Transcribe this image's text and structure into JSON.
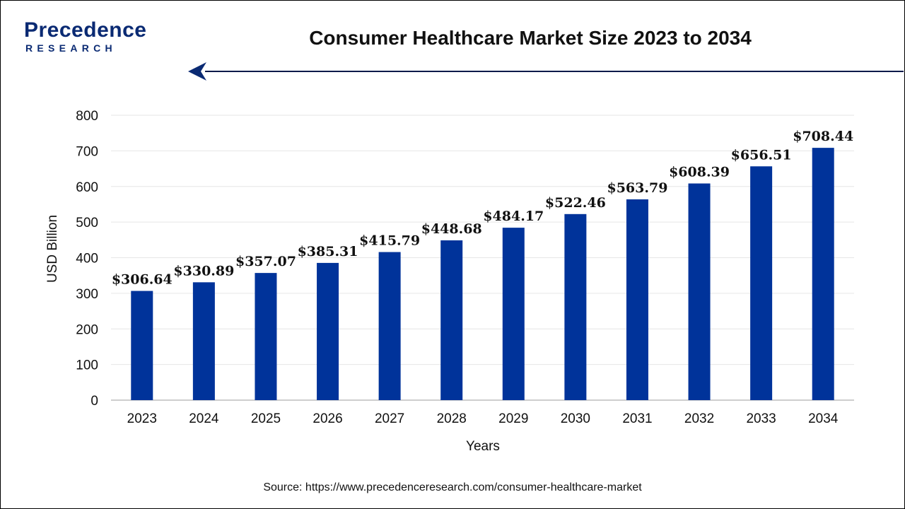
{
  "brand": {
    "name": "Precedence",
    "subtitle": "RESEARCH",
    "color": "#0a2a73"
  },
  "header": {
    "title": "Consumer Healthcare Market Size 2023 to 2034"
  },
  "footer": {
    "source": "Source: https://www.precedenceresearch.com/consumer-healthcare-market"
  },
  "chart_data": {
    "type": "bar",
    "title": "Consumer Healthcare Market Size 2023 to 2034",
    "xlabel": "Years",
    "ylabel": "USD Billion",
    "ylim": [
      0,
      800
    ],
    "yticks": [
      0,
      100,
      200,
      300,
      400,
      500,
      600,
      700,
      800
    ],
    "grid": true,
    "legend": "none",
    "bar_color": "#00339a",
    "categories": [
      "2023",
      "2024",
      "2025",
      "2026",
      "2027",
      "2028",
      "2029",
      "2030",
      "2031",
      "2032",
      "2033",
      "2034"
    ],
    "values": [
      306.64,
      330.89,
      357.07,
      385.31,
      415.79,
      448.68,
      484.17,
      522.46,
      563.79,
      608.39,
      656.51,
      708.44
    ],
    "data_labels": [
      "$306.64",
      "$330.89",
      "$357.07",
      "$385.31",
      "$415.79",
      "$448.68",
      "$484.17",
      "$522.46",
      "$563.79",
      "$608.39",
      "$656.51",
      "$708.44"
    ]
  }
}
